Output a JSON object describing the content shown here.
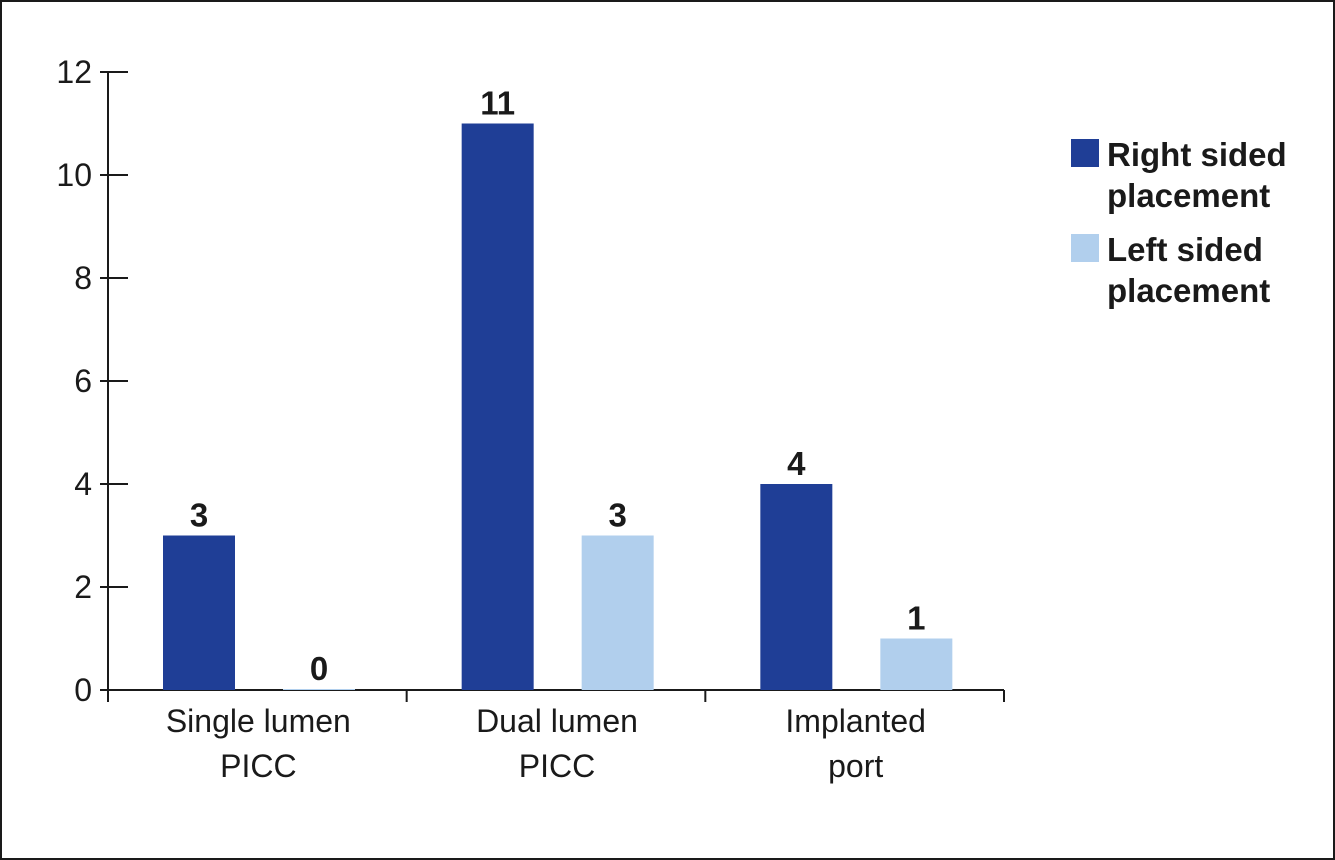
{
  "chart_data": {
    "type": "bar",
    "categories": [
      [
        "Single lumen",
        "PICC"
      ],
      [
        "Dual lumen",
        "PICC"
      ],
      [
        "Implanted",
        "port"
      ]
    ],
    "series": [
      {
        "name": [
          "Right sided",
          "placement"
        ],
        "color": "#1f3e96",
        "values": [
          3,
          11,
          4
        ]
      },
      {
        "name": [
          "Left sided",
          "placement"
        ],
        "color": "#b1cfed",
        "values": [
          0,
          3,
          1
        ]
      }
    ],
    "ylim": [
      0,
      12
    ],
    "yticks": [
      0,
      2,
      4,
      6,
      8,
      10,
      12
    ],
    "title": "",
    "xlabel": "",
    "ylabel": "",
    "legend_position": "right",
    "grid": false
  }
}
